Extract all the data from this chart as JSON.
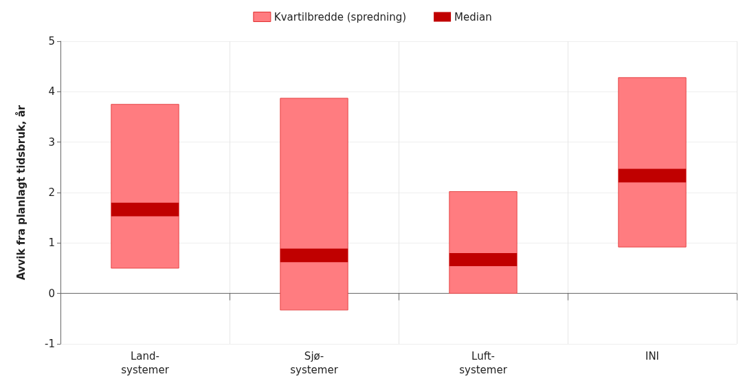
{
  "chart_data": {
    "type": "bar",
    "ylabel": "Avvik fra planlagt tidsbruk, år",
    "categories": [
      "Land-\nsystemer",
      "Sjø-\nsystemer",
      "Luft-\nsystemer",
      "INI"
    ],
    "series": [
      {
        "name": "Kvartilbredde (spredning)",
        "color": "#ff7c80",
        "base": [
          0.5,
          -0.33,
          0,
          0.92
        ],
        "values": [
          3.25,
          4.2,
          2.02,
          3.36
        ]
      },
      {
        "name": "Median",
        "color": "#c00000",
        "base": [
          1.53,
          0.62,
          0.54,
          2.2
        ],
        "values": [
          0.27,
          0.27,
          0.26,
          0.27
        ]
      }
    ],
    "ylim": [
      -1,
      5
    ],
    "yticks": [
      -1,
      0,
      1,
      2,
      3,
      4,
      5
    ],
    "grid": true,
    "legend": "top"
  }
}
